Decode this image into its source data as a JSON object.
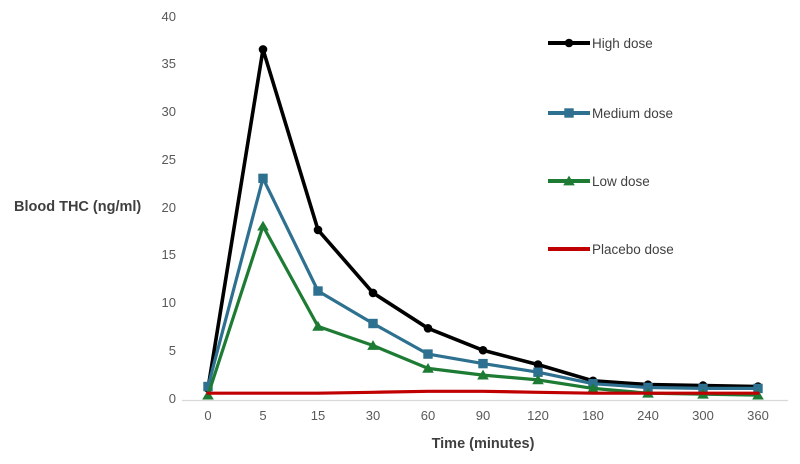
{
  "chart_data": {
    "type": "line",
    "title": "",
    "xlabel": "Time (minutes)",
    "ylabel": "Blood THC (ng/ml)",
    "x_axis_type": "categorical",
    "categories": [
      "0",
      "5",
      "15",
      "30",
      "60",
      "90",
      "120",
      "180",
      "240",
      "300",
      "360"
    ],
    "y_ticks": [
      0,
      5,
      10,
      15,
      20,
      25,
      30,
      35,
      40
    ],
    "ylim": [
      0,
      40
    ],
    "grid": false,
    "legend_position": "right",
    "series": [
      {
        "name": "High dose",
        "color": "#000000",
        "marker": "circle",
        "values": [
          1.0,
          36.5,
          17.6,
          11.0,
          7.3,
          5.0,
          3.5,
          1.8,
          1.4,
          1.3,
          1.2
        ]
      },
      {
        "name": "Medium dose",
        "color": "#2E708F",
        "marker": "square",
        "values": [
          1.2,
          23.0,
          11.2,
          7.8,
          4.6,
          3.6,
          2.7,
          1.5,
          1.1,
          1.0,
          1.0
        ]
      },
      {
        "name": "Low dose",
        "color": "#1E7B34",
        "marker": "triangle",
        "values": [
          0.3,
          18.0,
          7.5,
          5.5,
          3.1,
          2.4,
          1.9,
          1.0,
          0.5,
          0.4,
          0.3
        ]
      },
      {
        "name": "Placebo dose",
        "color": "#C00000",
        "marker": "none",
        "values": [
          0.5,
          0.5,
          0.5,
          0.6,
          0.7,
          0.7,
          0.6,
          0.5,
          0.5,
          0.5,
          0.5
        ]
      }
    ],
    "colors": {
      "axis_line": "#D9D9D9",
      "tick_label": "#595959",
      "axis_title": "#3F3F3F",
      "legend_label": "#404040",
      "background": "#FFFFFF"
    }
  }
}
